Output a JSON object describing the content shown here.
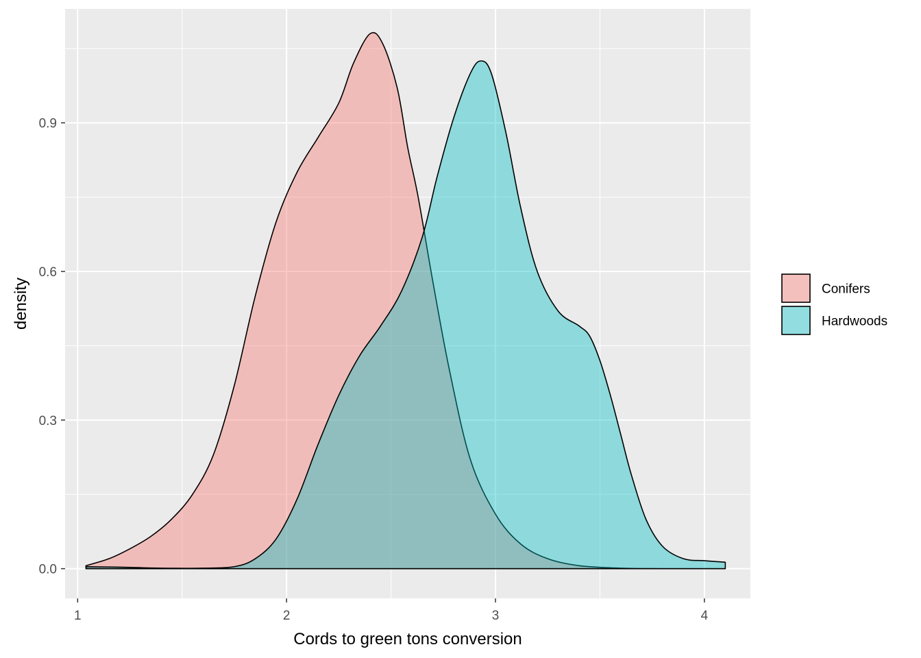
{
  "chart_data": {
    "type": "area",
    "subtype": "density",
    "title": "",
    "xlabel": "Cords to green tons conversion",
    "ylabel": "density",
    "xlim": [
      0.94,
      4.22
    ],
    "ylim": [
      -0.06,
      1.13
    ],
    "x_ticks": [
      1,
      2,
      3,
      4
    ],
    "x_tick_labels": [
      "1",
      "2",
      "3",
      "4"
    ],
    "y_ticks": [
      0.0,
      0.3,
      0.6,
      0.9
    ],
    "y_tick_labels": [
      "0.0",
      "0.3",
      "0.6",
      "0.9"
    ],
    "grid": true,
    "panel_background": "#ebebeb",
    "legend": {
      "position": "right",
      "title": ""
    },
    "series": [
      {
        "name": "Conifers",
        "color": "#f8766d",
        "fill_opacity": 0.4,
        "points": [
          [
            1.04,
            0.006
          ],
          [
            1.15,
            0.02
          ],
          [
            1.25,
            0.04
          ],
          [
            1.35,
            0.065
          ],
          [
            1.45,
            0.1
          ],
          [
            1.55,
            0.15
          ],
          [
            1.65,
            0.23
          ],
          [
            1.75,
            0.37
          ],
          [
            1.85,
            0.55
          ],
          [
            1.95,
            0.7
          ],
          [
            2.05,
            0.8
          ],
          [
            2.15,
            0.87
          ],
          [
            2.25,
            0.94
          ],
          [
            2.32,
            1.02
          ],
          [
            2.4,
            1.08
          ],
          [
            2.46,
            1.06
          ],
          [
            2.53,
            0.97
          ],
          [
            2.58,
            0.85
          ],
          [
            2.63,
            0.75
          ],
          [
            2.7,
            0.58
          ],
          [
            2.78,
            0.4
          ],
          [
            2.88,
            0.22
          ],
          [
            3.0,
            0.11
          ],
          [
            3.12,
            0.05
          ],
          [
            3.25,
            0.02
          ],
          [
            3.4,
            0.006
          ],
          [
            3.6,
            0.001
          ],
          [
            3.8,
            0.0
          ],
          [
            4.1,
            0.0
          ]
        ]
      },
      {
        "name": "Hardwoods",
        "color": "#00bfc4",
        "fill_opacity": 0.4,
        "points": [
          [
            1.04,
            0.004
          ],
          [
            1.2,
            0.003
          ],
          [
            1.4,
            0.001
          ],
          [
            1.6,
            0.001
          ],
          [
            1.75,
            0.004
          ],
          [
            1.85,
            0.02
          ],
          [
            1.95,
            0.06
          ],
          [
            2.05,
            0.14
          ],
          [
            2.15,
            0.25
          ],
          [
            2.25,
            0.35
          ],
          [
            2.35,
            0.43
          ],
          [
            2.45,
            0.49
          ],
          [
            2.55,
            0.56
          ],
          [
            2.65,
            0.67
          ],
          [
            2.72,
            0.79
          ],
          [
            2.8,
            0.91
          ],
          [
            2.88,
            1.0
          ],
          [
            2.93,
            1.025
          ],
          [
            2.98,
            1.0
          ],
          [
            3.05,
            0.88
          ],
          [
            3.12,
            0.73
          ],
          [
            3.2,
            0.6
          ],
          [
            3.3,
            0.52
          ],
          [
            3.4,
            0.49
          ],
          [
            3.45,
            0.47
          ],
          [
            3.5,
            0.42
          ],
          [
            3.55,
            0.35
          ],
          [
            3.6,
            0.27
          ],
          [
            3.65,
            0.19
          ],
          [
            3.72,
            0.1
          ],
          [
            3.8,
            0.045
          ],
          [
            3.9,
            0.02
          ],
          [
            4.0,
            0.016
          ],
          [
            4.1,
            0.013
          ]
        ]
      }
    ]
  }
}
